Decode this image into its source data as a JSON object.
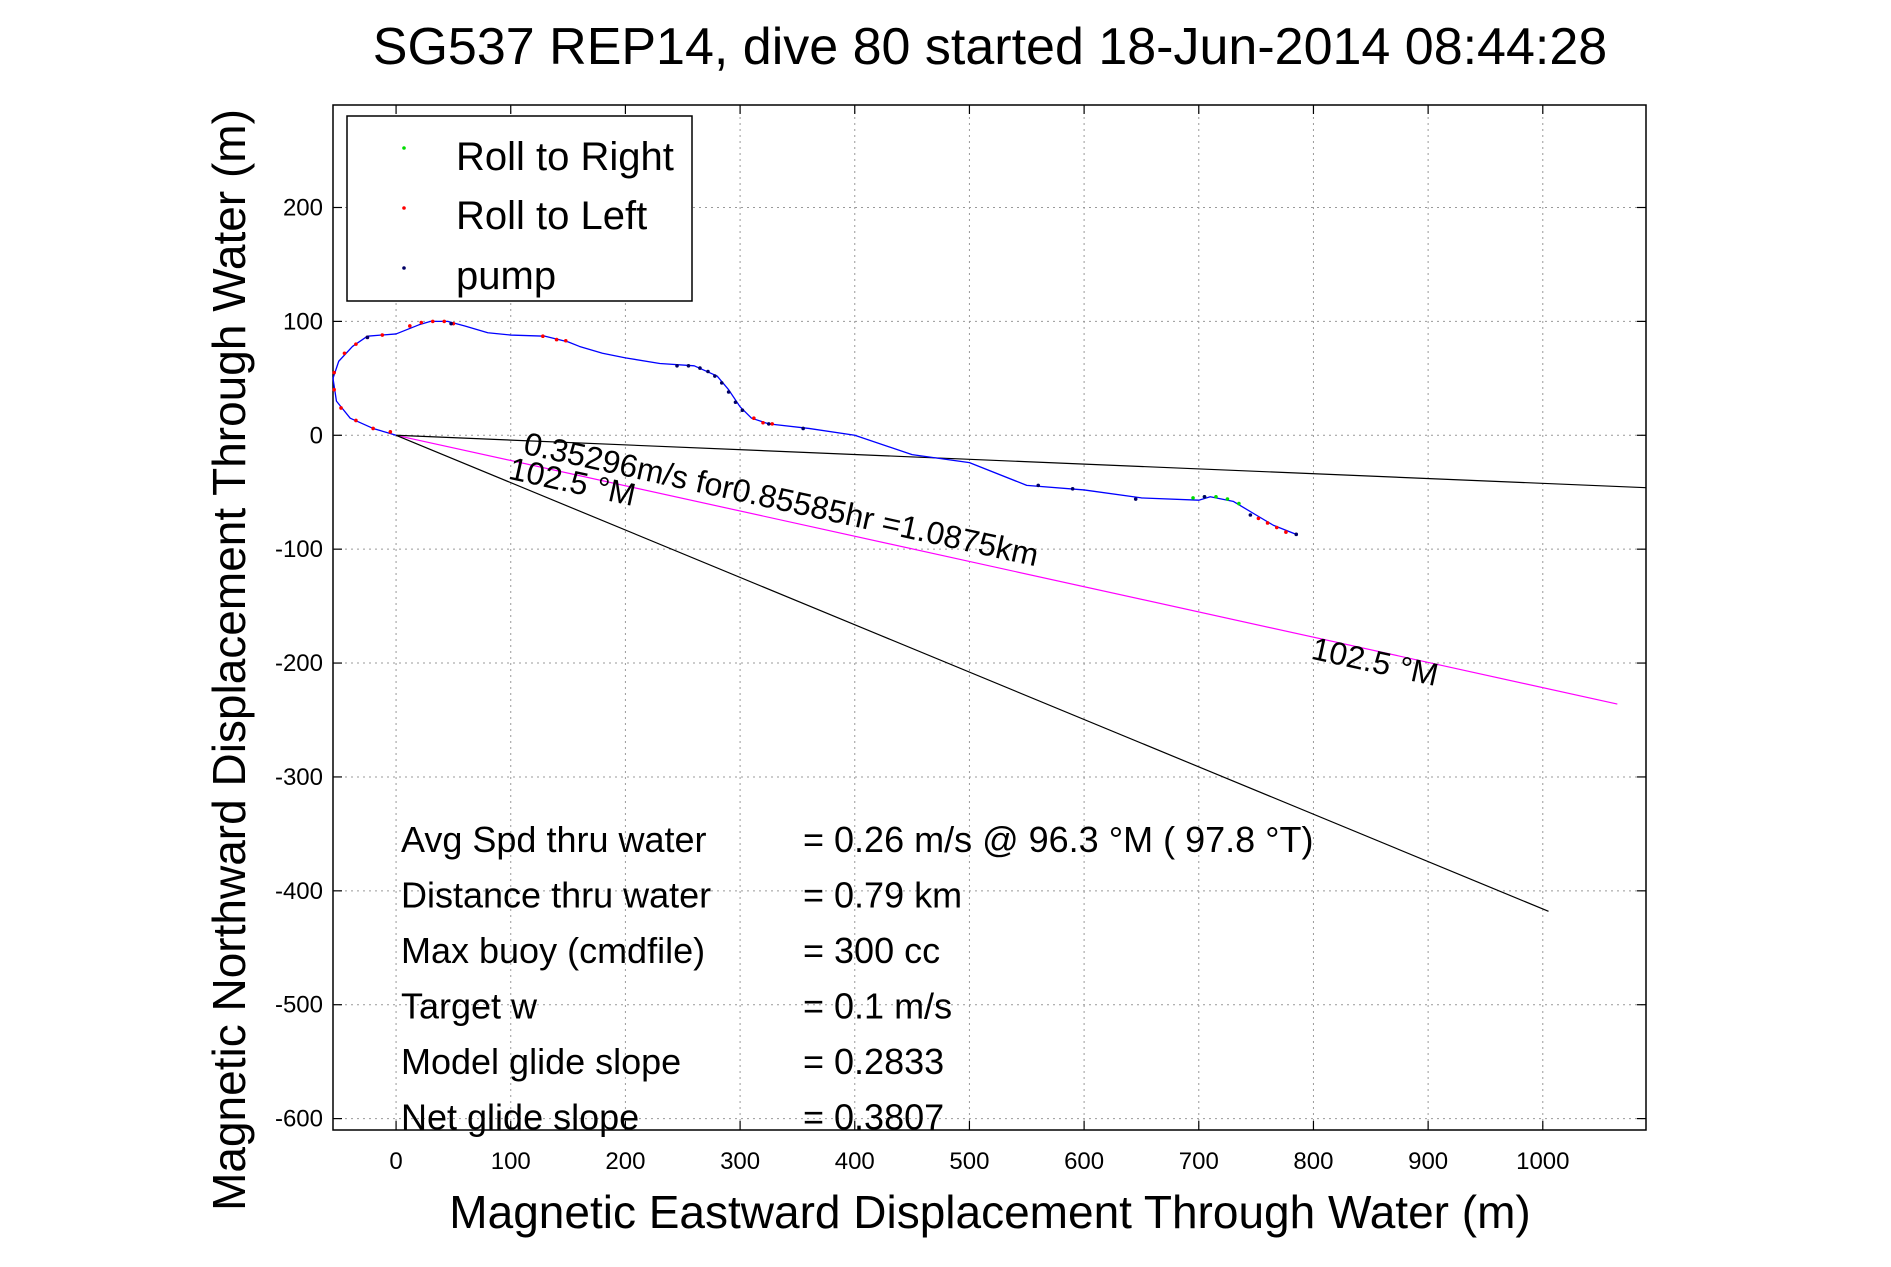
{
  "chart_data": {
    "type": "line",
    "title": "SG537 REP14, dive 80 started 18-Jun-2014 08:44:28",
    "xlabel": "Magnetic Eastward Displacement Through Water (m)",
    "ylabel": "Magnetic Northward Displacement Through Water (m)",
    "xlim": [
      -55,
      1090
    ],
    "ylim": [
      -610,
      290
    ],
    "xticks": [
      0,
      100,
      200,
      300,
      400,
      500,
      600,
      700,
      800,
      900,
      1000
    ],
    "yticks": [
      200,
      100,
      0,
      -100,
      -200,
      -300,
      -400,
      -500,
      -600
    ],
    "xtick_labels": [
      "0",
      "100",
      "200",
      "300",
      "400",
      "500",
      "600",
      "700",
      "800",
      "900",
      "1000"
    ],
    "ytick_labels": [
      "200",
      "100",
      "0",
      "-100",
      "-200",
      "-300",
      "-400",
      "-500",
      "-600"
    ],
    "grid": true,
    "legend": {
      "placement": "top-left",
      "entries": [
        {
          "label": "Roll to Right",
          "color": "#00dd00"
        },
        {
          "label": "Roll to Left",
          "color": "#ff0000"
        },
        {
          "label": "pump",
          "color": "#000066"
        }
      ]
    },
    "track": {
      "color": "#0000ff",
      "points": [
        [
          0,
          0
        ],
        [
          -20,
          6
        ],
        [
          -40,
          15
        ],
        [
          -52,
          30
        ],
        [
          -55,
          50
        ],
        [
          -50,
          65
        ],
        [
          -38,
          78
        ],
        [
          -25,
          87
        ],
        [
          0,
          89
        ],
        [
          20,
          97
        ],
        [
          30,
          100
        ],
        [
          45,
          100
        ],
        [
          60,
          96
        ],
        [
          80,
          90
        ],
        [
          100,
          88
        ],
        [
          130,
          87
        ],
        [
          150,
          82
        ],
        [
          160,
          78
        ],
        [
          180,
          72
        ],
        [
          200,
          68
        ],
        [
          230,
          63
        ],
        [
          260,
          61
        ],
        [
          280,
          52
        ],
        [
          290,
          40
        ],
        [
          300,
          25
        ],
        [
          310,
          15
        ],
        [
          325,
          10
        ],
        [
          360,
          6
        ],
        [
          400,
          0
        ],
        [
          450,
          -17
        ],
        [
          500,
          -24
        ],
        [
          550,
          -44
        ],
        [
          600,
          -48
        ],
        [
          650,
          -55
        ],
        [
          700,
          -57
        ],
        [
          710,
          -54
        ],
        [
          730,
          -58
        ],
        [
          750,
          -70
        ],
        [
          765,
          -79
        ],
        [
          785,
          -87
        ]
      ],
      "roll_right": [
        [
          695,
          -55
        ],
        [
          705,
          -54
        ],
        [
          715,
          -54
        ],
        [
          725,
          -56
        ],
        [
          735,
          -60
        ]
      ],
      "roll_left": [
        [
          -5,
          3
        ],
        [
          -20,
          6
        ],
        [
          -35,
          13
        ],
        [
          -48,
          24
        ],
        [
          -54,
          40
        ],
        [
          -54,
          55
        ],
        [
          -45,
          72
        ],
        [
          -35,
          80
        ],
        [
          -25,
          86
        ],
        [
          -12,
          88
        ],
        [
          12,
          96
        ],
        [
          22,
          99
        ],
        [
          32,
          100
        ],
        [
          42,
          100
        ],
        [
          50,
          98
        ],
        [
          128,
          87
        ],
        [
          140,
          84
        ],
        [
          148,
          83
        ],
        [
          312,
          15
        ],
        [
          320,
          11
        ],
        [
          328,
          10
        ],
        [
          752,
          -73
        ],
        [
          760,
          -77
        ],
        [
          768,
          -81
        ],
        [
          776,
          -85
        ]
      ],
      "pump": [
        [
          -25,
          86
        ],
        [
          48,
          98
        ],
        [
          245,
          61
        ],
        [
          255,
          61
        ],
        [
          265,
          59
        ],
        [
          272,
          56
        ],
        [
          278,
          52
        ],
        [
          284,
          46
        ],
        [
          290,
          38
        ],
        [
          296,
          29
        ],
        [
          302,
          22
        ],
        [
          325,
          10
        ],
        [
          355,
          6
        ],
        [
          560,
          -44
        ],
        [
          590,
          -47
        ],
        [
          645,
          -56
        ],
        [
          705,
          -54
        ],
        [
          745,
          -70
        ],
        [
          785,
          -87
        ]
      ]
    },
    "lines": [
      {
        "name": "net track",
        "color": "#ff00ff",
        "from": [
          0,
          0
        ],
        "to": [
          1065,
          -236
        ]
      },
      {
        "name": "heading line",
        "color": "#000000",
        "from": [
          0,
          0
        ],
        "to": [
          1005,
          -418
        ]
      },
      {
        "name": "current line",
        "color": "#000000",
        "from": [
          0,
          0
        ],
        "to": [
          1090,
          -46
        ]
      }
    ],
    "annotations": [
      {
        "text": "0.35296m/s for0.85585hr =1.0875km",
        "x": 110,
        "y": -16,
        "rotation": 12.4
      },
      {
        "text": "102.5 °M",
        "x": 97,
        "y": -38,
        "rotation": 12.4
      },
      {
        "text": "102.5 °M",
        "x": 797,
        "y": -196,
        "rotation": 12.4
      }
    ],
    "stats": [
      {
        "label": "Avg Spd thru water",
        "value": "=  0.26 m/s @  96.3 °M ( 97.8 °T)"
      },
      {
        "label": "Distance thru water",
        "value": "=  0.79 km"
      },
      {
        "label": "Max buoy (cmdfile)",
        "value": "= 300 cc"
      },
      {
        "label": "Target w",
        "value": "= 0.1 m/s"
      },
      {
        "label": "Model glide slope",
        "value": "= 0.2833"
      },
      {
        "label": "Net glide slope",
        "value": "= 0.3807"
      }
    ]
  }
}
